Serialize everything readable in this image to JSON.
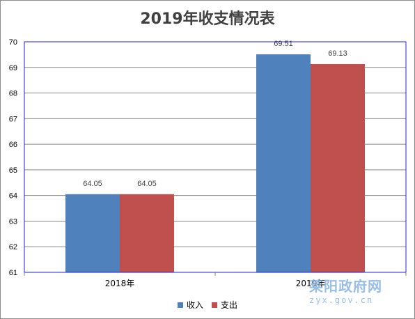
{
  "chart_data": {
    "type": "bar",
    "title": "2019年收支情况表",
    "categories": [
      "2018年",
      "2019年"
    ],
    "series": [
      {
        "name": "收入",
        "values": [
          64.05,
          69.51
        ],
        "color": "#4f81bd"
      },
      {
        "name": "支出",
        "values": [
          64.05,
          69.13
        ],
        "color": "#c0504d"
      }
    ],
    "ylim": [
      61,
      70
    ],
    "yticks": [
      61,
      62,
      63,
      64,
      65,
      66,
      67,
      68,
      69,
      70
    ],
    "grid": true,
    "legend": "bottom",
    "data_labels": true
  },
  "watermark": {
    "name": "莱阳政府网",
    "url": "zyx.gov.cn"
  }
}
